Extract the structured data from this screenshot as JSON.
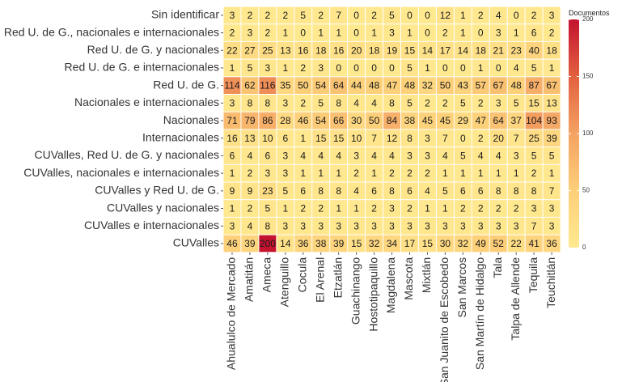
{
  "chart_data": {
    "type": "heatmap",
    "title": "",
    "xlabel": "",
    "ylabel": "",
    "legend": {
      "title": "Documentos",
      "ticks": [
        0,
        50,
        100,
        150,
        200
      ],
      "range": [
        0,
        200
      ],
      "placement": "right"
    },
    "colors": {
      "low": "#FFE98F",
      "mid1": "#FDCF79",
      "mid2": "#F4A262",
      "mid3": "#E2613F",
      "high": "#C4122F"
    },
    "columns": [
      "Ahualulco de Mercado",
      "Amatitán",
      "Ameca",
      "Atenguillo",
      "Cocula",
      "El Arenal",
      "Etzatlán",
      "Guachinango",
      "Hostotipaquillo",
      "Magdalena",
      "Mascota",
      "Mixtlán",
      "San Juanito de Escobedo",
      "San Marcos",
      "San Martín de Hidalgo",
      "Tala",
      "Talpa de Allende",
      "Tequila",
      "Teuchitlán"
    ],
    "rows": [
      {
        "label": "Sin identificar",
        "values": [
          3,
          2,
          2,
          2,
          5,
          2,
          7,
          0,
          2,
          5,
          0,
          0,
          12,
          1,
          2,
          4,
          0,
          2,
          3
        ]
      },
      {
        "label": "Red U. de G., nacionales e internacionales",
        "values": [
          2,
          3,
          2,
          1,
          0,
          1,
          1,
          0,
          1,
          3,
          1,
          0,
          2,
          1,
          0,
          3,
          1,
          6,
          2
        ]
      },
      {
        "label": "Red U. de G. y nacionales",
        "values": [
          22,
          27,
          25,
          13,
          16,
          18,
          16,
          20,
          18,
          19,
          15,
          14,
          17,
          14,
          18,
          21,
          23,
          40,
          18
        ]
      },
      {
        "label": "Red U. de G. e internacionales",
        "values": [
          1,
          5,
          3,
          1,
          2,
          3,
          0,
          0,
          0,
          0,
          5,
          1,
          0,
          0,
          1,
          0,
          4,
          5,
          1
        ]
      },
      {
        "label": "Red U. de G.",
        "values": [
          114,
          62,
          116,
          35,
          50,
          54,
          64,
          44,
          48,
          47,
          48,
          32,
          50,
          43,
          57,
          67,
          48,
          87,
          67
        ]
      },
      {
        "label": "Nacionales e internacionales",
        "values": [
          3,
          8,
          8,
          3,
          2,
          5,
          8,
          4,
          4,
          8,
          5,
          2,
          2,
          5,
          2,
          3,
          5,
          15,
          13
        ]
      },
      {
        "label": "Nacionales",
        "values": [
          71,
          79,
          86,
          28,
          46,
          54,
          66,
          30,
          50,
          84,
          38,
          45,
          45,
          29,
          47,
          64,
          37,
          104,
          93
        ]
      },
      {
        "label": "Internacionales",
        "values": [
          16,
          13,
          10,
          6,
          1,
          15,
          15,
          10,
          7,
          12,
          8,
          3,
          7,
          0,
          2,
          20,
          7,
          25,
          39
        ]
      },
      {
        "label": "CUValles, Red U. de G. y nacionales",
        "values": [
          6,
          4,
          6,
          3,
          4,
          4,
          4,
          3,
          4,
          4,
          3,
          3,
          4,
          5,
          4,
          4,
          3,
          5,
          5
        ]
      },
      {
        "label": "CUValles, nacionales e internacionales",
        "values": [
          1,
          2,
          3,
          3,
          1,
          1,
          1,
          2,
          1,
          2,
          2,
          2,
          1,
          1,
          1,
          1,
          1,
          2,
          1
        ]
      },
      {
        "label": "CUValles y Red U. de G.",
        "values": [
          9,
          9,
          23,
          5,
          6,
          8,
          8,
          4,
          6,
          8,
          6,
          4,
          5,
          6,
          6,
          8,
          8,
          8,
          7
        ]
      },
      {
        "label": "CUValles y nacionales",
        "values": [
          1,
          2,
          5,
          1,
          2,
          2,
          1,
          1,
          2,
          3,
          2,
          1,
          1,
          2,
          2,
          2,
          2,
          3,
          3
        ]
      },
      {
        "label": "CUValles e internacionales",
        "values": [
          3,
          4,
          8,
          3,
          3,
          3,
          3,
          3,
          3,
          3,
          3,
          3,
          3,
          3,
          3,
          3,
          3,
          7,
          3
        ]
      },
      {
        "label": "CUValles",
        "values": [
          46,
          39,
          200,
          14,
          36,
          38,
          39,
          15,
          32,
          34,
          17,
          15,
          30,
          32,
          49,
          52,
          22,
          41,
          36
        ]
      }
    ]
  }
}
